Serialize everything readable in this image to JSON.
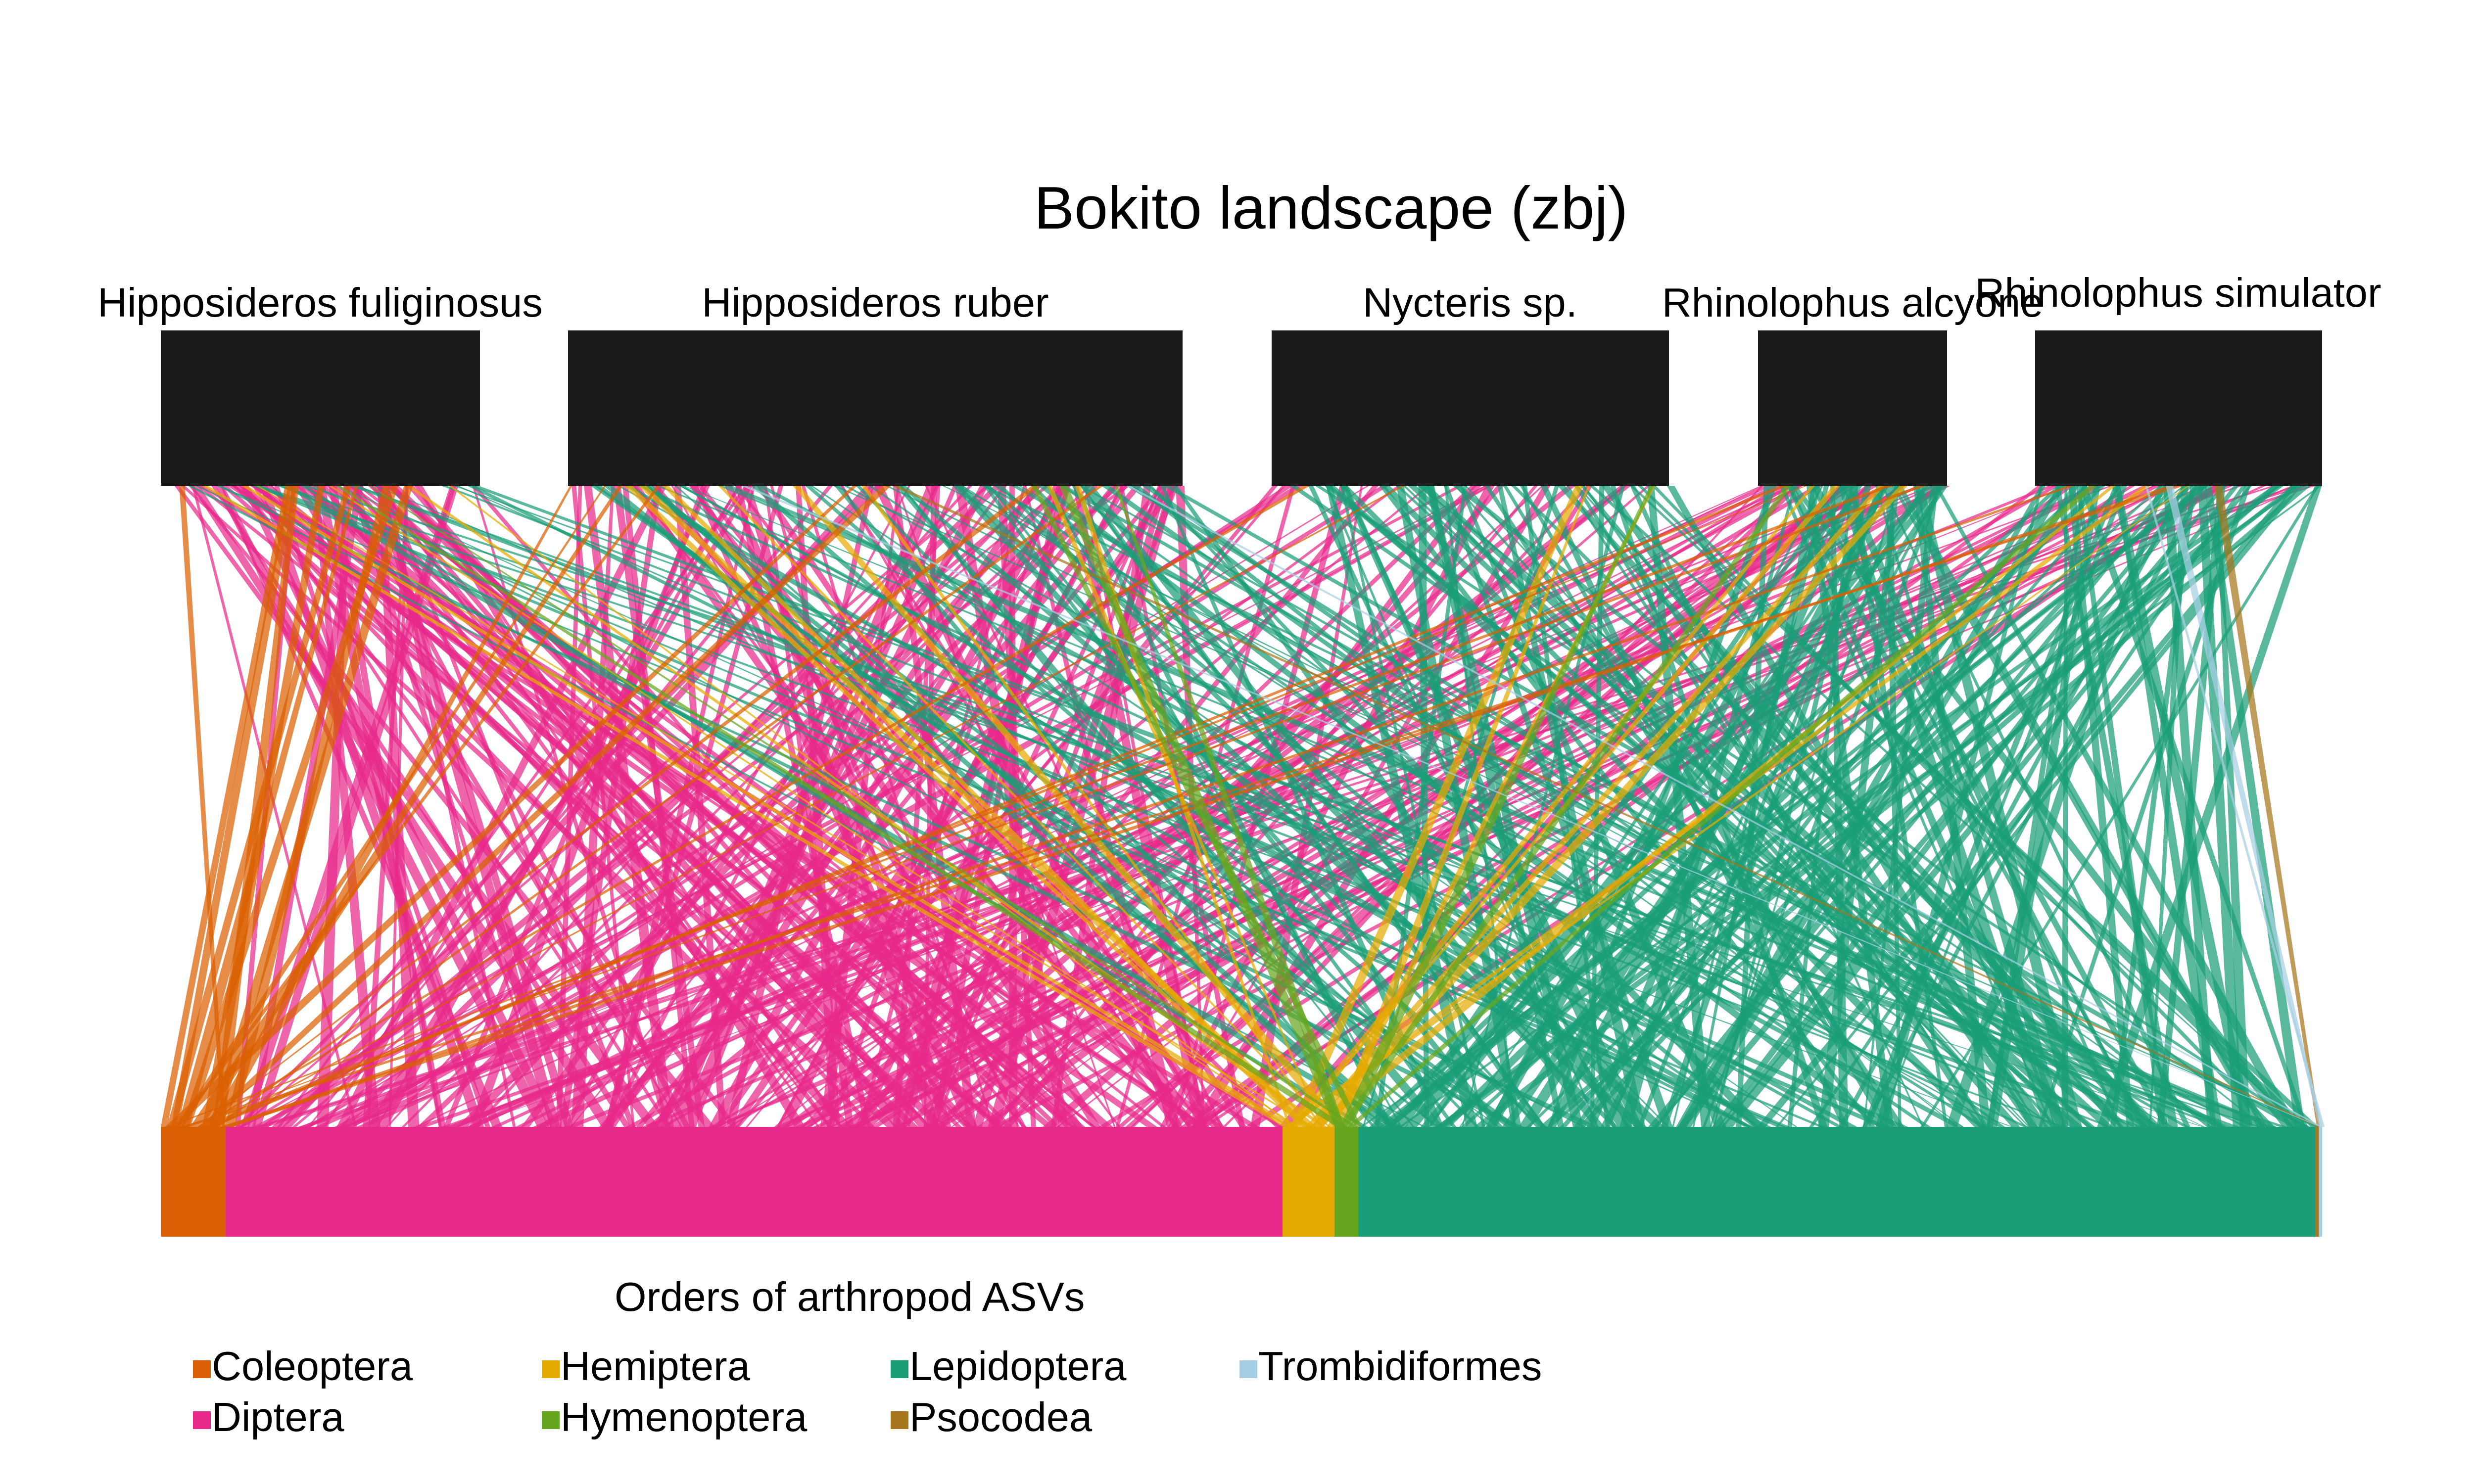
{
  "title": "Bokito landscape (zbj)",
  "legend_title": "Orders of arthropod ASVs",
  "bats": [
    {
      "name": "Hipposideros fuliginosus"
    },
    {
      "name": "Hipposideros ruber"
    },
    {
      "name": "Nycteris sp."
    },
    {
      "name": "Rhinolophus alcyone"
    },
    {
      "name": "Rhinolophus simulator"
    }
  ],
  "orders": [
    {
      "name": "Coleoptera",
      "color": "#D95F02",
      "share": 0.03
    },
    {
      "name": "Diptera",
      "color": "#E7298A",
      "share": 0.489
    },
    {
      "name": "Hemiptera",
      "color": "#E6AB02",
      "share": 0.024
    },
    {
      "name": "Hymenoptera",
      "color": "#66A61E",
      "share": 0.011
    },
    {
      "name": "Lepidoptera",
      "color": "#1B9E77",
      "share": 0.443
    },
    {
      "name": "Psocodea",
      "color": "#A6761D",
      "share": 0.0015
    },
    {
      "name": "Trombidiformes",
      "color": "#A6CEE3",
      "share": 0.0015
    }
  ],
  "bat_colors": {
    "box": "#1a1a1a"
  },
  "links_note_hidden": []
}
